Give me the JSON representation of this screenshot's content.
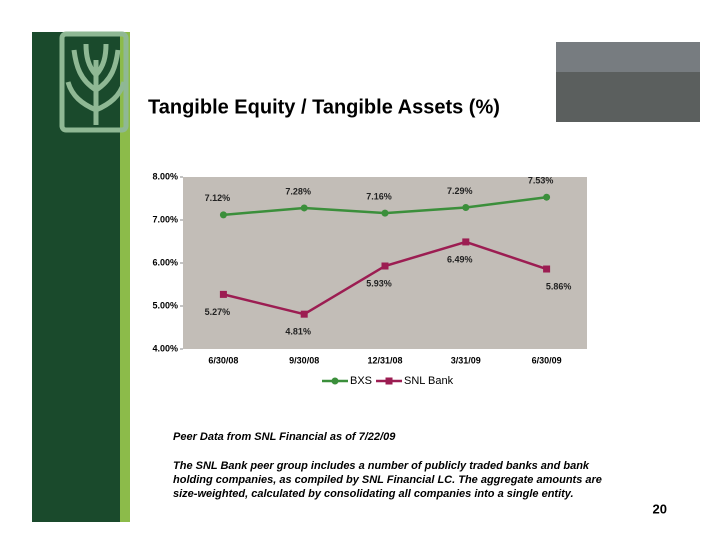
{
  "chart_data": {
    "type": "line",
    "title": "Tangible Equity / Tangible Assets (%)",
    "categories": [
      "6/30/08",
      "9/30/08",
      "12/31/08",
      "3/31/09",
      "6/30/09"
    ],
    "series": [
      {
        "name": "BXS",
        "color": "#3b8f3b",
        "values": [
          7.12,
          7.28,
          7.16,
          7.29,
          7.53
        ],
        "value_labels": [
          "7.12%",
          "7.28%",
          "7.16%",
          "7.29%",
          "7.53%"
        ]
      },
      {
        "name": "SNL Bank",
        "color": "#9c1d52",
        "values": [
          5.27,
          4.81,
          5.93,
          6.49,
          5.86
        ],
        "value_labels": [
          "5.27%",
          "4.81%",
          "5.93%",
          "6.49%",
          "5.86%"
        ]
      }
    ],
    "ylim": [
      4,
      8
    ],
    "yticks": [
      {
        "value": 4,
        "label": "4.00%"
      },
      {
        "value": 5,
        "label": "5.00%"
      },
      {
        "value": 6,
        "label": "6.00%"
      },
      {
        "value": 7,
        "label": "7.00%"
      },
      {
        "value": 8,
        "label": "8.00%"
      }
    ],
    "legend": "bottom"
  },
  "notes": {
    "source": "Peer Data from SNL Financial as of 7/22/09",
    "description": [
      "The SNL Bank peer group includes a number of publicly traded banks and bank",
      "holding companies, as compiled by SNL Financial LC.  The aggregate amounts are",
      "size-weighted, calculated by consolidating all companies into a single entity."
    ]
  },
  "page_number": "20"
}
